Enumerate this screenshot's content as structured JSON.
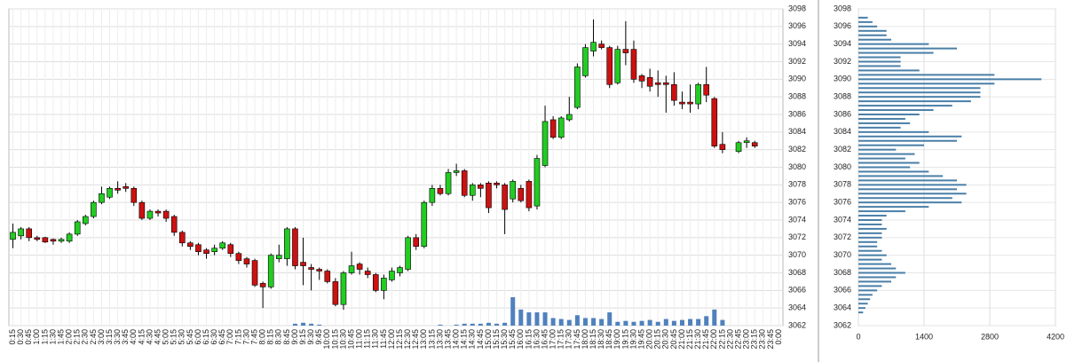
{
  "chart_data": [
    {
      "type": "candlestick",
      "categories": [
        "0:15",
        "0:30",
        "0:45",
        "1:00",
        "1:15",
        "1:30",
        "1:45",
        "2:00",
        "2:15",
        "2:30",
        "2:45",
        "3:00",
        "3:15",
        "3:30",
        "3:45",
        "4:00",
        "4:15",
        "4:30",
        "4:45",
        "5:00",
        "5:15",
        "5:30",
        "5:45",
        "6:00",
        "6:15",
        "6:30",
        "6:45",
        "7:00",
        "7:15",
        "7:30",
        "7:45",
        "8:00",
        "8:15",
        "8:30",
        "8:45",
        "9:00",
        "9:15",
        "9:30",
        "9:45",
        "10:00",
        "10:15",
        "10:30",
        "10:45",
        "11:00",
        "11:15",
        "11:30",
        "11:45",
        "12:00",
        "12:15",
        "12:30",
        "12:45",
        "13:00",
        "13:15",
        "13:30",
        "13:45",
        "14:00",
        "14:15",
        "14:30",
        "14:45",
        "15:00",
        "15:15",
        "15:30",
        "15:45",
        "16:00",
        "16:15",
        "16:30",
        "16:45",
        "17:00",
        "17:15",
        "17:30",
        "17:45",
        "18:00",
        "18:15",
        "18:30",
        "18:45",
        "19:00",
        "19:15",
        "19:30",
        "19:45",
        "20:00",
        "20:15",
        "20:30",
        "20:45",
        "21:00",
        "21:15",
        "21:30",
        "21:45",
        "22:00",
        "22:15",
        "22:30",
        "22:45",
        "23:00",
        "23:15",
        "23:30",
        "23:45",
        "0:00"
      ],
      "open": [
        3071.8,
        3072.2,
        3073,
        3072,
        3072,
        3071.8,
        3071.6,
        3071.6,
        3072.4,
        3073.6,
        3074.4,
        3076,
        3076.6,
        3077.6,
        3077.8,
        3077.6,
        3076,
        3074.2,
        3075,
        3075,
        3074.4,
        3072.6,
        3071.4,
        3071.2,
        3070.6,
        3070.4,
        3070.8,
        3071.2,
        3070.2,
        3069.6,
        3069.4,
        3066.8,
        3066.4,
        3069.6,
        3069.6,
        3073,
        3069.2,
        3068.6,
        3068.4,
        3068.2,
        3067,
        3064.4,
        3068,
        3069,
        3068.2,
        3067.8,
        3066,
        3067.2,
        3068,
        3068.4,
        3072,
        3071,
        3076,
        3077.6,
        3077,
        3079.4,
        3079.6,
        3076.8,
        3078,
        3078.2,
        3078.2,
        3078,
        3076.4,
        3077.6,
        3078.4,
        3075.6,
        3080.2,
        3085.4,
        3083.4,
        3085.4,
        3086.8,
        3090.4,
        3093.2,
        3094,
        3093.6,
        3089.6,
        3093.4,
        3093.4,
        3090.4,
        3090.2,
        3089.6,
        3089.6,
        3089.4,
        3087.4,
        3087.4,
        3087.2,
        3089.4,
        3087.8,
        3082.6,
        null,
        3081.8,
        3082.8,
        3082.8,
        null,
        null,
        null
      ],
      "high": [
        3073.6,
        3073.2,
        3073.2,
        3072.2,
        3072.1,
        3071.9,
        3072,
        3072.6,
        3074,
        3074.6,
        3076.2,
        3077.8,
        3077.8,
        3078.4,
        3078.2,
        3077.8,
        3076.2,
        3075.2,
        3075.2,
        3075.2,
        3074.6,
        3072.8,
        3071.6,
        3071.4,
        3070.8,
        3071.2,
        3071.6,
        3071.4,
        3070.4,
        3069.8,
        3069.6,
        3067,
        3070.2,
        3071.2,
        3073.2,
        3073.2,
        3072,
        3069,
        3068.6,
        3068.4,
        3067.4,
        3068.2,
        3070.4,
        3069.2,
        3068.6,
        3068,
        3067.8,
        3068.6,
        3068.8,
        3072.2,
        3072.4,
        3076.2,
        3078,
        3078,
        3079.8,
        3080.4,
        3079.8,
        3078.2,
        3078.2,
        3078.4,
        3078.4,
        3078.2,
        3078.6,
        3078,
        3078.6,
        3081.4,
        3087,
        3085.8,
        3085.8,
        3088,
        3091.8,
        3094,
        3096.8,
        3094.4,
        3093.8,
        3093.8,
        3096.6,
        3094.4,
        3090.6,
        3091.2,
        3091,
        3090.4,
        3090.8,
        3088.6,
        3089.4,
        3089.6,
        3091.4,
        3088,
        3084,
        null,
        3083,
        3083.4,
        3083,
        null,
        null,
        null
      ],
      "low": [
        3070.8,
        3071.8,
        3071.6,
        3071.6,
        3071.4,
        3071.2,
        3071.4,
        3071.4,
        3072.2,
        3073.4,
        3074.2,
        3075.8,
        3076.4,
        3077,
        3077.2,
        3075.6,
        3074,
        3074,
        3074.4,
        3073.8,
        3072.2,
        3071,
        3070.6,
        3070,
        3069.6,
        3070,
        3070.6,
        3069.8,
        3069,
        3068.6,
        3066.4,
        3064,
        3066.2,
        3069.2,
        3068.8,
        3068.4,
        3066.6,
        3066,
        3067.2,
        3066.8,
        3064.2,
        3063.8,
        3067.8,
        3067.8,
        3067.4,
        3065.8,
        3065,
        3067,
        3067.6,
        3068.2,
        3070.6,
        3070.8,
        3075.6,
        3076.8,
        3076.8,
        3079,
        3076.6,
        3076.2,
        3076.6,
        3074.8,
        3077.6,
        3072.4,
        3076,
        3076,
        3075,
        3075.2,
        3080,
        3083.2,
        3083.2,
        3085.2,
        3086.6,
        3090.2,
        3092.6,
        3093.4,
        3089,
        3089.4,
        3091.6,
        3089.6,
        3089,
        3088.6,
        3088,
        3086.2,
        3087,
        3086.6,
        3086.2,
        3086.6,
        3087.4,
        3082.2,
        3081.6,
        null,
        3081.6,
        3082.2,
        3082.2,
        null,
        null,
        null
      ],
      "close": [
        3072.6,
        3073,
        3072,
        3071.8,
        3071.5,
        3071.6,
        3071.8,
        3072.4,
        3073.8,
        3074.4,
        3076,
        3077,
        3077.6,
        3077.4,
        3077.6,
        3076,
        3074.2,
        3075,
        3074.8,
        3074.2,
        3072.6,
        3071.4,
        3071,
        3070.4,
        3070.2,
        3070.8,
        3071.4,
        3070.2,
        3069.4,
        3069,
        3066.6,
        3066.4,
        3070,
        3070,
        3073,
        3068.8,
        3068.8,
        3068.4,
        3068.2,
        3067,
        3064.4,
        3068,
        3068.8,
        3068.4,
        3067.8,
        3066,
        3067.4,
        3068.2,
        3068.6,
        3072,
        3071,
        3076,
        3077.6,
        3077,
        3079.4,
        3079.6,
        3076.8,
        3078,
        3077.6,
        3075.4,
        3078,
        3075.2,
        3078.4,
        3076.2,
        3075.4,
        3081,
        3085.2,
        3083.4,
        3085.6,
        3086,
        3091.4,
        3093.6,
        3094.2,
        3093.6,
        3089.4,
        3093.4,
        3093,
        3090,
        3089.8,
        3089.2,
        3089.4,
        3089.4,
        3087.6,
        3087.2,
        3087.2,
        3089.4,
        3088.2,
        3082.4,
        3082,
        null,
        3082.8,
        3083,
        3082.4,
        null,
        null,
        null
      ],
      "volume": [
        null,
        null,
        null,
        null,
        null,
        null,
        null,
        null,
        null,
        null,
        null,
        null,
        null,
        null,
        null,
        null,
        null,
        null,
        null,
        null,
        null,
        null,
        null,
        null,
        null,
        null,
        null,
        null,
        null,
        null,
        null,
        null,
        null,
        null,
        null,
        20,
        30,
        20,
        10,
        null,
        null,
        null,
        null,
        null,
        null,
        null,
        null,
        null,
        null,
        null,
        null,
        null,
        null,
        10,
        null,
        10,
        20,
        20,
        20,
        30,
        20,
        30,
        300,
        170,
        140,
        140,
        140,
        80,
        70,
        60,
        110,
        80,
        80,
        70,
        140,
        40,
        50,
        40,
        50,
        60,
        40,
        70,
        50,
        60,
        70,
        70,
        100,
        170,
        60,
        null,
        null,
        null,
        null,
        null,
        null,
        null
      ],
      "up_color": "#22cc22",
      "down_color": "#cc1111",
      "volume_color": "#4f81bd",
      "ylim": [
        3062,
        3098
      ],
      "yticks": [
        3062,
        3064,
        3066,
        3068,
        3070,
        3072,
        3074,
        3076,
        3078,
        3080,
        3082,
        3084,
        3086,
        3088,
        3090,
        3092,
        3094,
        3096,
        3098
      ],
      "grid": true
    },
    {
      "type": "barh",
      "y": [
        3063.5,
        3064,
        3064.5,
        3065,
        3065.5,
        3066,
        3066.5,
        3067,
        3067.5,
        3068,
        3068.5,
        3069,
        3069.5,
        3070,
        3070.5,
        3071,
        3071.5,
        3072,
        3072.5,
        3073,
        3073.5,
        3074,
        3074.5,
        3075,
        3075.5,
        3076,
        3076.5,
        3077,
        3077.5,
        3078,
        3078.5,
        3079,
        3079.5,
        3080,
        3080.5,
        3081,
        3081.5,
        3082,
        3082.5,
        3083,
        3083.5,
        3084,
        3084.5,
        3085,
        3085.5,
        3086,
        3086.5,
        3087,
        3087.5,
        3088,
        3088.5,
        3089,
        3089.5,
        3090,
        3090.5,
        3091,
        3091.5,
        3092,
        3092.5,
        3093,
        3093.5,
        3094,
        3094.5,
        3095,
        3095.5,
        3096,
        3096.5,
        3097
      ],
      "values": [
        100,
        150,
        200,
        250,
        300,
        400,
        500,
        700,
        800,
        1000,
        800,
        700,
        500,
        600,
        500,
        400,
        400,
        500,
        500,
        600,
        500,
        500,
        600,
        1000,
        1500,
        2200,
        2000,
        2300,
        2100,
        2300,
        2100,
        1800,
        1500,
        1100,
        1300,
        1000,
        1200,
        800,
        1400,
        2100,
        2200,
        1500,
        900,
        1100,
        1000,
        1300,
        1600,
        2000,
        2400,
        2600,
        2600,
        2600,
        2900,
        3900,
        2900,
        1300,
        900,
        900,
        900,
        1600,
        2100,
        1500,
        700,
        600,
        600,
        400,
        300,
        200
      ],
      "color": "#4a7fa8",
      "xlim": [
        0,
        4200
      ],
      "xticks": [
        0,
        1400,
        2800,
        4200
      ],
      "ylim": [
        3062,
        3098
      ],
      "yticks": [
        3062,
        3064,
        3066,
        3068,
        3070,
        3072,
        3074,
        3076,
        3078,
        3080,
        3082,
        3084,
        3086,
        3088,
        3090,
        3092,
        3094,
        3096,
        3098
      ],
      "grid": true
    }
  ]
}
